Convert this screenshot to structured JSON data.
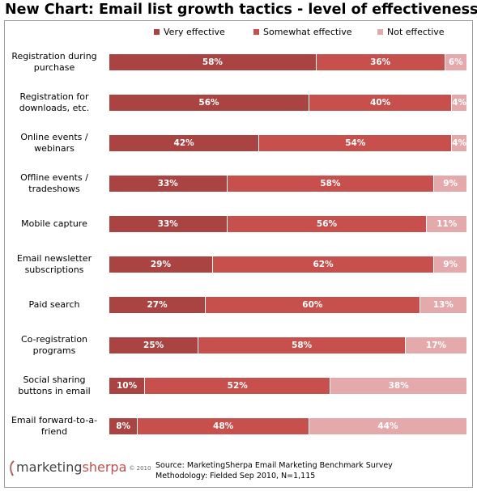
{
  "title": "New Chart: Email list growth tactics - level of effectiveness",
  "legend_position": "top",
  "colors": {
    "very_effective": "#a94443",
    "somewhat_effective": "#c8504c",
    "not_effective": "#e3a9ab"
  },
  "chart_data": {
    "type": "bar",
    "orientation": "horizontal-stacked-100",
    "title": "New Chart: Email list growth tactics - level of effectiveness",
    "categories": [
      "Registration during purchase",
      "Registration for downloads, etc.",
      "Online events / webinars",
      "Offline events / tradeshows",
      "Mobile capture",
      "Email newsletter subscriptions",
      "Paid search",
      "Co-registration programs",
      "Social sharing buttons in email",
      "Email forward-to-a-friend"
    ],
    "series": [
      {
        "name": "Very effective",
        "values": [
          58,
          56,
          42,
          33,
          33,
          29,
          27,
          25,
          10,
          8
        ]
      },
      {
        "name": "Somewhat effective",
        "values": [
          36,
          40,
          54,
          58,
          56,
          62,
          60,
          58,
          52,
          48
        ]
      },
      {
        "name": "Not effective",
        "values": [
          6,
          4,
          4,
          9,
          11,
          9,
          13,
          17,
          38,
          44
        ]
      }
    ],
    "value_labels": [
      [
        "58%",
        "36%",
        "6%"
      ],
      [
        "56%",
        "40%",
        "4%"
      ],
      [
        "42%",
        "54%",
        "4%"
      ],
      [
        "33%",
        "58%",
        "9%"
      ],
      [
        "33%",
        "56%",
        "11%"
      ],
      [
        "29%",
        "62%",
        "9%"
      ],
      [
        "27%",
        "60%",
        "13%"
      ],
      [
        "25%",
        "58%",
        "17%"
      ],
      [
        "10%",
        "52%",
        "38%"
      ],
      [
        "8%",
        "48%",
        "44%"
      ]
    ],
    "xlim": [
      0,
      100
    ]
  },
  "label_lines": [
    [
      "Registration during",
      "purchase"
    ],
    [
      "Registration for",
      "downloads, etc."
    ],
    [
      "Online events /",
      "webinars"
    ],
    [
      "Offline events /",
      "tradeshows"
    ],
    [
      "Mobile capture"
    ],
    [
      "Email newsletter",
      "subscriptions"
    ],
    [
      "Paid search"
    ],
    [
      "Co-registration",
      "programs"
    ],
    [
      "Social sharing",
      "buttons in email"
    ],
    [
      "Email forward-to-a-",
      "friend"
    ]
  ],
  "logo": {
    "part1": "marketing",
    "part2": "sherpa",
    "mark": "© 2010"
  },
  "source": {
    "line1": "Source: MarketingSherpa Email Marketing Benchmark Survey",
    "line2": "Methodology: Fielded Sep 2010, N=1,115"
  }
}
